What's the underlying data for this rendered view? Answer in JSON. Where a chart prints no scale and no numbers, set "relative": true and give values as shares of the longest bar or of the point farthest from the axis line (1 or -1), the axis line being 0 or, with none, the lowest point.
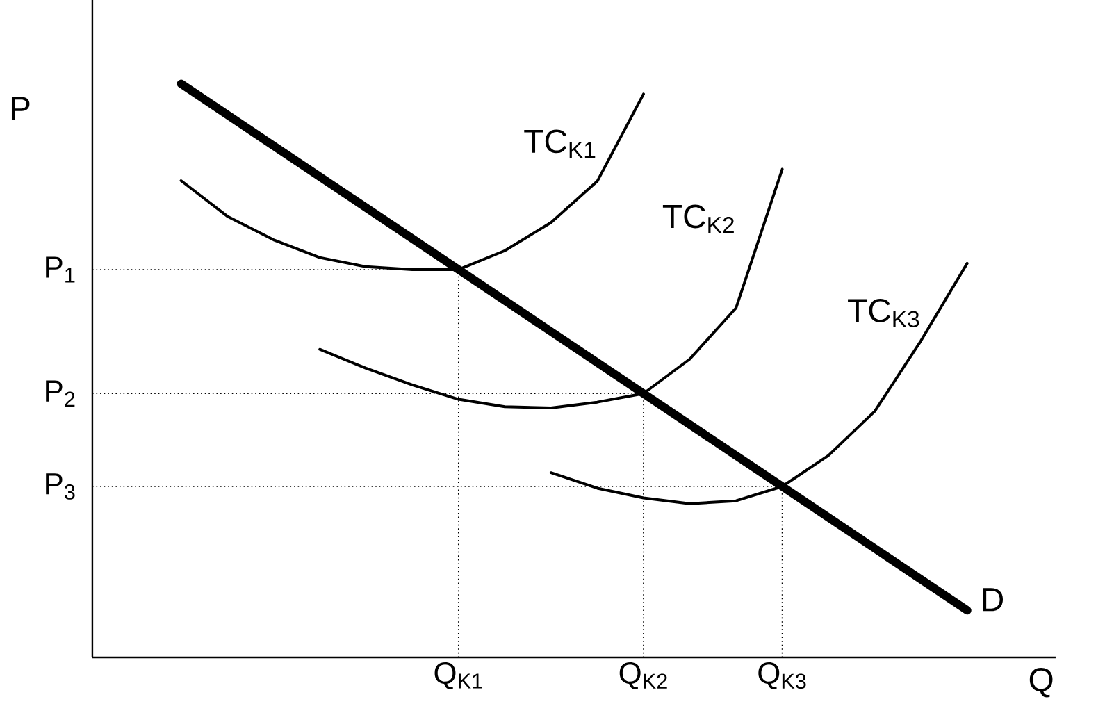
{
  "chart_data": {
    "type": "line",
    "relative": true,
    "xlabel": "Q",
    "ylabel": "P",
    "categories": [
      null,
      null,
      null,
      null,
      null,
      null,
      null,
      "Q$_{K1}$",
      null,
      null,
      null,
      "Q$_{K2}$",
      null,
      null,
      "Q$_{K3}$",
      null,
      null,
      null,
      null
    ],
    "grid": false,
    "legend": false,
    "marker": "none",
    "line_style": "solid",
    "series": [
      {
        "name": "D",
        "color": "#000000",
        "values": [
          null,
          1.0,
          0.946,
          0.892,
          0.838,
          0.784,
          0.73,
          0.676,
          0.622,
          0.568,
          0.514,
          0.46,
          0.406,
          0.352,
          0.298,
          0.244,
          0.19,
          0.136,
          0.082
        ]
      },
      {
        "name": "TC$_{K1}$",
        "color": "#000000",
        "values": [
          null,
          0.831,
          0.769,
          0.728,
          0.697,
          0.681,
          0.676,
          0.676,
          0.709,
          0.758,
          0.83,
          0.982,
          null,
          null,
          null,
          null,
          null,
          null,
          null
        ]
      },
      {
        "name": "TC$_{K2}$",
        "color": "#000000",
        "values": [
          null,
          null,
          null,
          null,
          0.537,
          0.504,
          0.475,
          0.45,
          0.437,
          0.435,
          0.445,
          0.46,
          0.52,
          0.609,
          0.851,
          null,
          null,
          null,
          null
        ]
      },
      {
        "name": "TC$_{K3}$",
        "color": "#000000",
        "values": [
          null,
          null,
          null,
          null,
          null,
          null,
          null,
          null,
          null,
          0.322,
          0.295,
          0.278,
          0.268,
          0.273,
          0.298,
          0.352,
          0.429,
          0.552,
          0.687
        ]
      }
    ],
    "ref_lines": [
      {
        "axis": "y",
        "value": 0.676,
        "label": "P$_{1}$",
        "line_style": "dotted"
      },
      {
        "axis": "y",
        "value": 0.46,
        "label": "P$_{2}$",
        "line_style": "dotted"
      },
      {
        "axis": "y",
        "value": 0.298,
        "label": "P$_{3}$",
        "line_style": "dotted"
      },
      {
        "axis": "x",
        "value": "Q$_{K1}$",
        "line_style": "dotted"
      },
      {
        "axis": "x",
        "value": "Q$_{K2}$",
        "line_style": "dotted"
      },
      {
        "axis": "x",
        "value": "Q$_{K3}$",
        "line_style": "dotted"
      }
    ]
  }
}
